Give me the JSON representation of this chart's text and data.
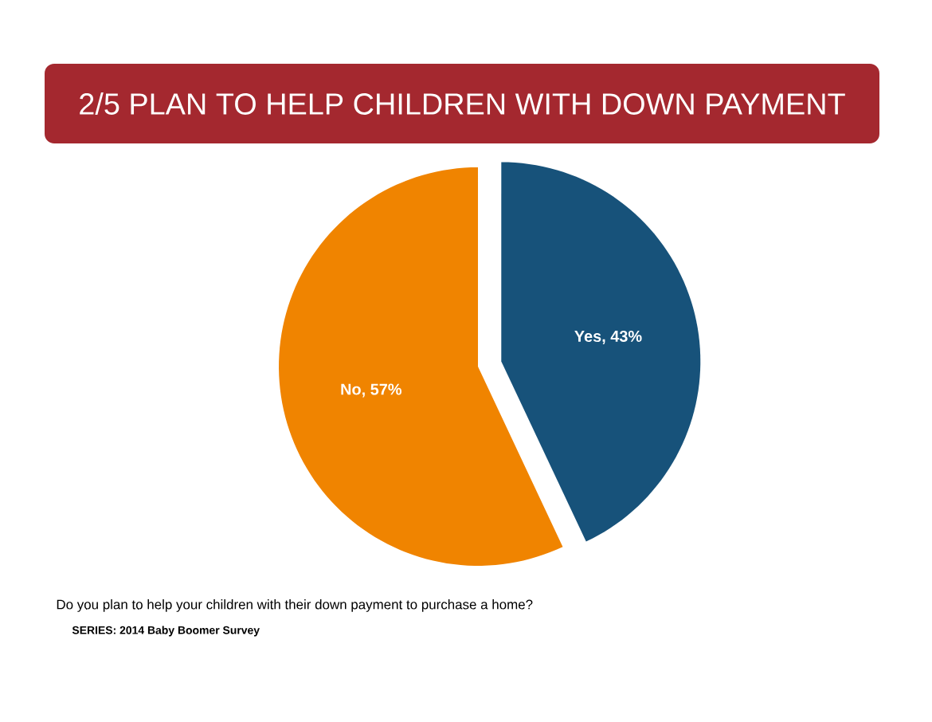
{
  "chart_data": {
    "type": "pie",
    "title": "2/5 PLAN TO HELP CHILDREN WITH DOWN PAYMENT",
    "categories": [
      "Yes",
      "No"
    ],
    "values": [
      43,
      57
    ],
    "colors": [
      "#17527a",
      "#f08400"
    ],
    "value_labels": [
      ", 43%",
      ", 57%"
    ],
    "annotations": [
      "Do you plan to help your children with their down payment to purchase a home?",
      "**SERIES: 2014 Baby Boomer Survey**"
    ]
  }
}
